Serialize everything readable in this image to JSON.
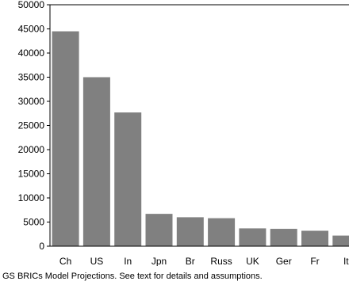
{
  "caption": "GS BRICs Model Projections. See text for details and assumptions.",
  "colors": {
    "bar": "#808080",
    "axis": "#000000",
    "text": "#000000",
    "background": "#ffffff"
  },
  "chart_data": {
    "type": "bar",
    "title": "",
    "xlabel": "",
    "ylabel": "",
    "categories": [
      "Ch",
      "US",
      "In",
      "Jpn",
      "Br",
      "Russ",
      "UK",
      "Ger",
      "Fr",
      "It"
    ],
    "values": [
      44500,
      35000,
      27700,
      6700,
      6000,
      5800,
      3700,
      3600,
      3200,
      2200
    ],
    "ylim": [
      0,
      50000
    ],
    "yticks": [
      0,
      5000,
      10000,
      15000,
      20000,
      25000,
      30000,
      35000,
      40000,
      45000,
      50000
    ],
    "grid": false,
    "legend": "none"
  }
}
